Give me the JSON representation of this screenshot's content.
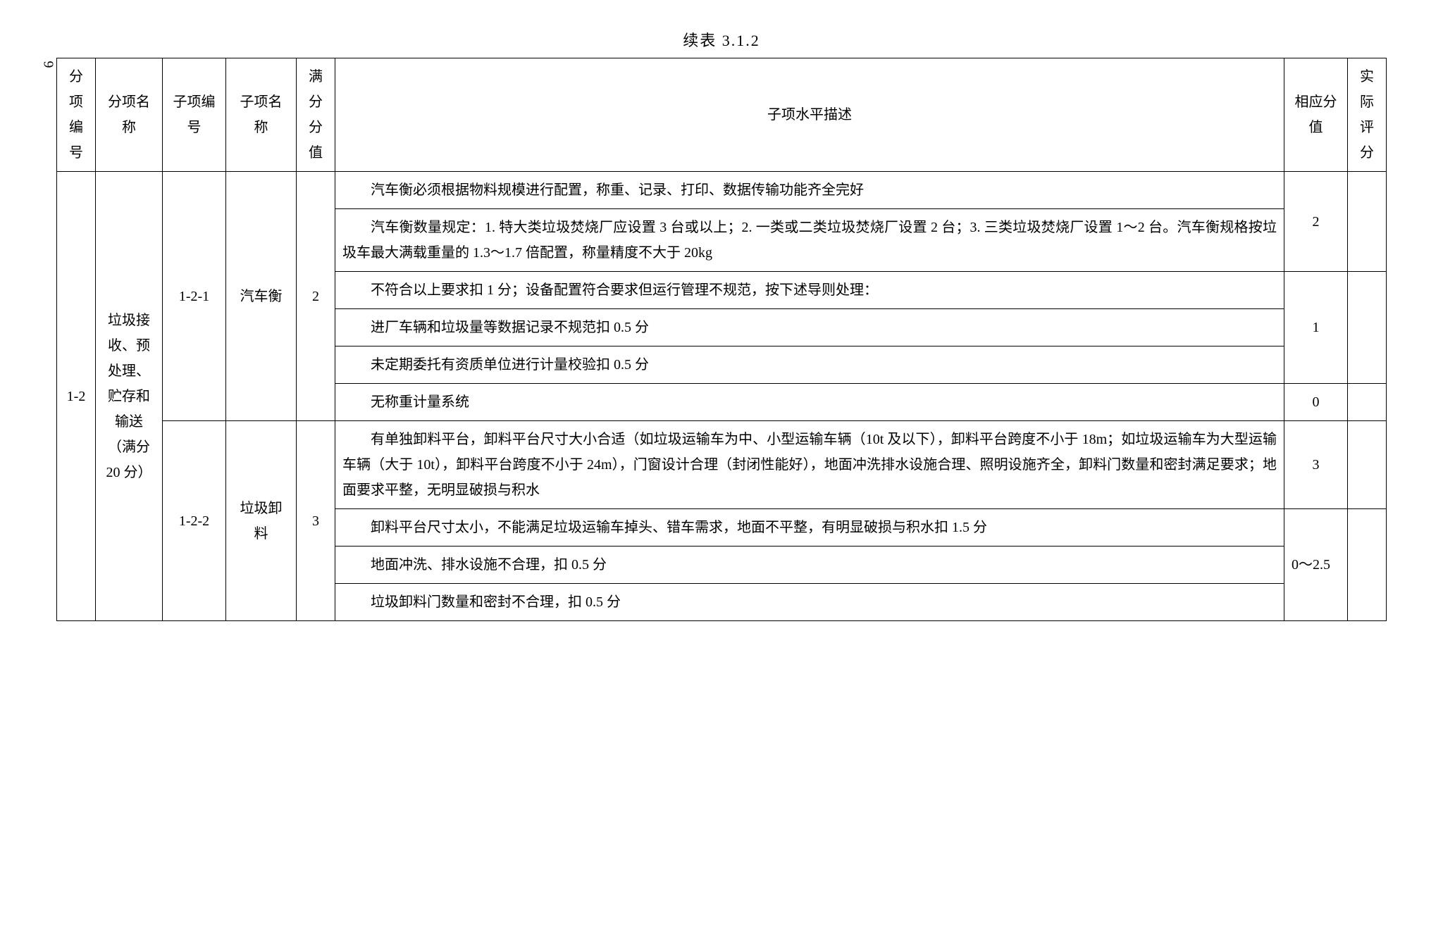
{
  "page_number": "6",
  "table_title": "续表 3.1.2",
  "headers": {
    "col1": "分项编号",
    "col2": "分项名称",
    "col3": "子项编号",
    "col4": "子项名称",
    "col5": "满分分值",
    "col6": "子项水平描述",
    "col7": "相应分值",
    "col8": "实际评分"
  },
  "section": {
    "id": "1-2",
    "name": "垃圾接收、预处理、贮存和输送（满分20 分）"
  },
  "sub1": {
    "id": "1-2-1",
    "name": "汽车衡",
    "full": "2",
    "rows": {
      "r1": "汽车衡必须根据物料规模进行配置，称重、记录、打印、数据传输功能齐全完好",
      "r2": "汽车衡数量规定：1. 特大类垃圾焚烧厂应设置 3 台或以上；2. 一类或二类垃圾焚烧厂设置 2 台；3. 三类垃圾焚烧厂设置 1～2 台。汽车衡规格按垃圾车最大满载重量的 1.3～1.7 倍配置，称量精度不大于 20kg",
      "score12": "2",
      "r3": "不符合以上要求扣 1 分；设备配置符合要求但运行管理不规范，按下述导则处理：",
      "r4": "进厂车辆和垃圾量等数据记录不规范扣 0.5 分",
      "r5": "未定期委托有资质单位进行计量校验扣 0.5 分",
      "score345": "1",
      "r6": "无称重计量系统",
      "score6": "0"
    }
  },
  "sub2": {
    "id": "1-2-2",
    "name": "垃圾卸料",
    "full": "3",
    "rows": {
      "r1": "有单独卸料平台，卸料平台尺寸大小合适（如垃圾运输车为中、小型运输车辆（10t 及以下），卸料平台跨度不小于 18m；如垃圾运输车为大型运输车辆（大于 10t），卸料平台跨度不小于 24m），门窗设计合理（封闭性能好），地面冲洗排水设施合理、照明设施齐全，卸料门数量和密封满足要求；地面要求平整，无明显破损与积水",
      "score1": "3",
      "r2": "卸料平台尺寸太小，不能满足垃圾运输车掉头、错车需求，地面不平整，有明显破损与积水扣 1.5 分",
      "r3": "地面冲洗、排水设施不合理，扣 0.5 分",
      "r4": "垃圾卸料门数量和密封不合理，扣 0.5 分",
      "score234": "0～2.5"
    }
  }
}
